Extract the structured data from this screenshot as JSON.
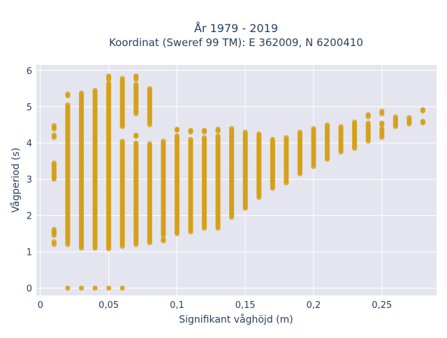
{
  "chart_data": {
    "type": "scatter",
    "title_line1": "År 1979 - 2019",
    "title_line2": "Koordinat (Sweref 99 TM): E 362009, N 6200410",
    "xlabel": "Signifikant våghöjd (m)",
    "ylabel": "Vågperiod (s)",
    "xlim": [
      -0.003,
      0.29
    ],
    "ylim": [
      -0.2,
      6.15
    ],
    "x_ticks": [
      0,
      0.05,
      0.1,
      0.15,
      0.2,
      0.25
    ],
    "x_tick_labels": [
      "0",
      "0,05",
      "0,1",
      "0,15",
      "0,2",
      "0,25"
    ],
    "y_ticks": [
      0,
      1,
      2,
      3,
      4,
      5,
      6
    ],
    "y_tick_labels": [
      "0",
      "1",
      "2",
      "3",
      "4",
      "5",
      "6"
    ],
    "grid": true,
    "colors": {
      "marker": "#d4a017",
      "plot_bg": "#e5e5ef",
      "grid": "#ffffff",
      "text": "#2a3f5f"
    },
    "columns": [
      {
        "x": 0.01,
        "ranges": [
          [
            1.2,
            1.28
          ],
          [
            1.45,
            1.62
          ],
          [
            3.0,
            3.45
          ],
          [
            4.15,
            4.22
          ],
          [
            4.38,
            4.48
          ]
        ]
      },
      {
        "x": 0.02,
        "ranges": [
          [
            0,
            0
          ],
          [
            1.2,
            5.05
          ],
          [
            5.3,
            5.35
          ]
        ]
      },
      {
        "x": 0.03,
        "ranges": [
          [
            0,
            0
          ],
          [
            1.1,
            5.38
          ]
        ]
      },
      {
        "x": 0.04,
        "ranges": [
          [
            0,
            0
          ],
          [
            1.1,
            5.45
          ]
        ]
      },
      {
        "x": 0.05,
        "ranges": [
          [
            0,
            0
          ],
          [
            1.08,
            5.65
          ],
          [
            5.75,
            5.85
          ]
        ]
      },
      {
        "x": 0.06,
        "ranges": [
          [
            0,
            0
          ],
          [
            1.15,
            4.05
          ],
          [
            4.45,
            5.78
          ]
        ]
      },
      {
        "x": 0.07,
        "ranges": [
          [
            1.2,
            4.0
          ],
          [
            4.18,
            4.22
          ],
          [
            4.8,
            5.62
          ],
          [
            5.75,
            5.85
          ]
        ]
      },
      {
        "x": 0.08,
        "ranges": [
          [
            1.25,
            3.98
          ],
          [
            4.5,
            5.5
          ]
        ]
      },
      {
        "x": 0.09,
        "ranges": [
          [
            1.3,
            1.35
          ],
          [
            1.45,
            4.05
          ]
        ]
      },
      {
        "x": 0.1,
        "ranges": [
          [
            1.5,
            4.2
          ],
          [
            4.35,
            4.38
          ]
        ]
      },
      {
        "x": 0.11,
        "ranges": [
          [
            1.55,
            4.1
          ],
          [
            4.3,
            4.35
          ]
        ]
      },
      {
        "x": 0.12,
        "ranges": [
          [
            1.65,
            4.15
          ],
          [
            4.3,
            4.35
          ]
        ]
      },
      {
        "x": 0.13,
        "ranges": [
          [
            1.65,
            4.2
          ],
          [
            4.33,
            4.38
          ]
        ]
      },
      {
        "x": 0.14,
        "ranges": [
          [
            1.95,
            4.4
          ]
        ]
      },
      {
        "x": 0.15,
        "ranges": [
          [
            2.2,
            4.3
          ]
        ]
      },
      {
        "x": 0.16,
        "ranges": [
          [
            2.5,
            4.25
          ]
        ]
      },
      {
        "x": 0.17,
        "ranges": [
          [
            2.75,
            4.1
          ]
        ]
      },
      {
        "x": 0.18,
        "ranges": [
          [
            2.9,
            4.15
          ]
        ]
      },
      {
        "x": 0.19,
        "ranges": [
          [
            3.15,
            4.3
          ]
        ]
      },
      {
        "x": 0.2,
        "ranges": [
          [
            3.35,
            4.4
          ]
        ]
      },
      {
        "x": 0.21,
        "ranges": [
          [
            3.55,
            4.5
          ]
        ]
      },
      {
        "x": 0.22,
        "ranges": [
          [
            3.75,
            4.45
          ]
        ]
      },
      {
        "x": 0.23,
        "ranges": [
          [
            3.85,
            4.58
          ]
        ]
      },
      {
        "x": 0.24,
        "ranges": [
          [
            4.05,
            4.55
          ],
          [
            4.72,
            4.78
          ]
        ]
      },
      {
        "x": 0.25,
        "ranges": [
          [
            4.15,
            4.4
          ],
          [
            4.5,
            4.55
          ],
          [
            4.8,
            4.88
          ]
        ]
      },
      {
        "x": 0.26,
        "ranges": [
          [
            4.45,
            4.72
          ]
        ]
      },
      {
        "x": 0.27,
        "ranges": [
          [
            4.52,
            4.7
          ]
        ]
      },
      {
        "x": 0.28,
        "ranges": [
          [
            4.55,
            4.6
          ],
          [
            4.88,
            4.92
          ]
        ]
      }
    ]
  }
}
